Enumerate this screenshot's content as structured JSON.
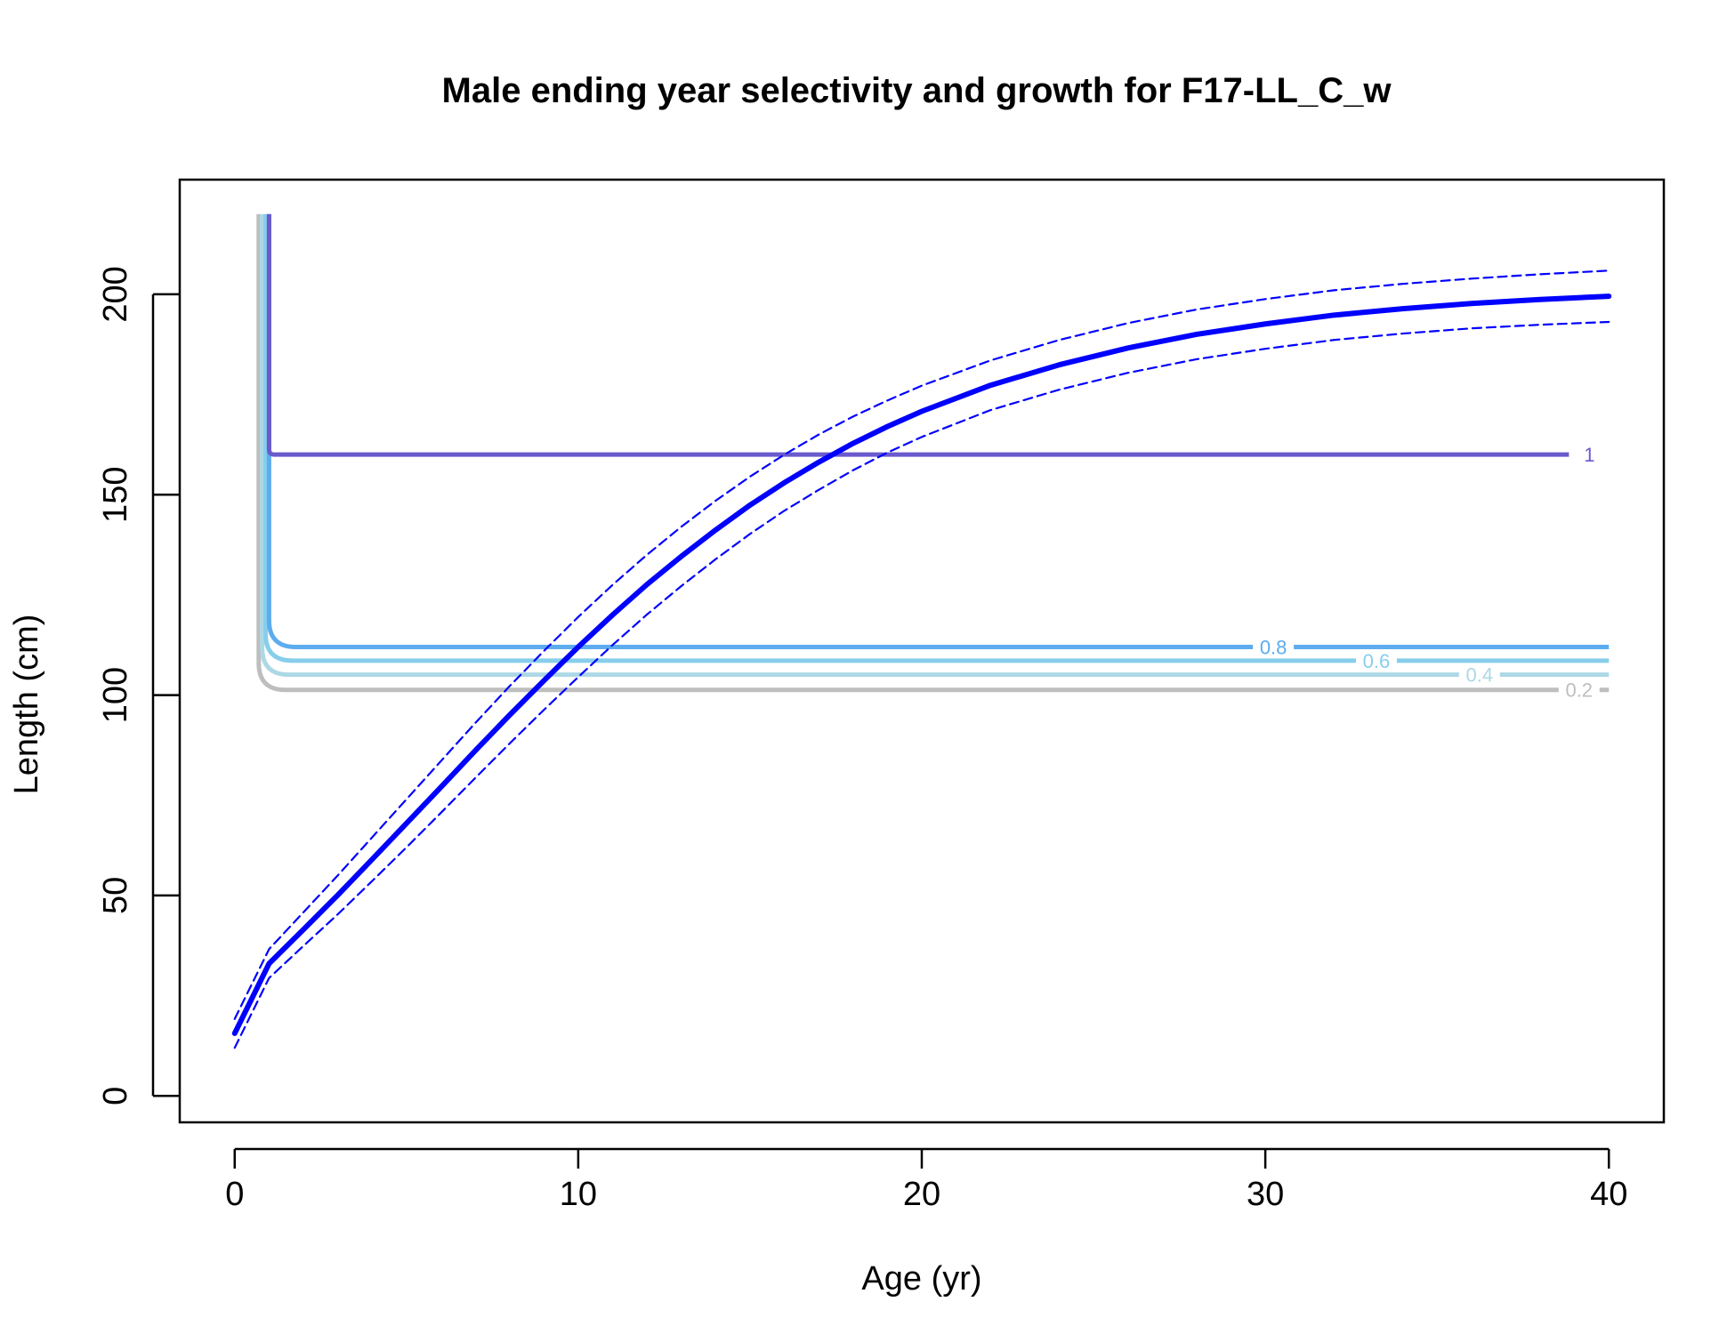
{
  "chart_data": {
    "type": "line",
    "title": "Male ending year selectivity and growth for F17-LL_C_w",
    "xlabel": "Age (yr)",
    "ylabel": "Length (cm)",
    "xlim": [
      -1.6,
      41.6
    ],
    "ylim": [
      -6.6,
      228.6
    ],
    "xticks": [
      0,
      10,
      20,
      30,
      40
    ],
    "yticks": [
      0,
      50,
      100,
      150,
      200
    ],
    "grid": false,
    "series": [
      {
        "color": "#0000ff",
        "style": "solid",
        "x": [
          0,
          1,
          2,
          3,
          4,
          5,
          6,
          7,
          8,
          9,
          10,
          11,
          12,
          13,
          14,
          15,
          16,
          17,
          18,
          19,
          20,
          22,
          24,
          26,
          28,
          30,
          32,
          34,
          36,
          38,
          40
        ],
        "y": [
          15.6,
          33,
          41.5,
          50.1,
          59,
          68,
          77,
          86.1,
          95,
          103.6,
          112,
          120,
          127.6,
          134.6,
          141.2,
          147.4,
          153,
          158.1,
          162.8,
          167,
          170.8,
          177.3,
          182.4,
          186.6,
          190,
          192.6,
          194.8,
          196.4,
          197.7,
          198.7,
          199.5
        ]
      },
      {
        "color": "#0000ff",
        "style": "dashed",
        "x": [
          0,
          1,
          2,
          3,
          4,
          5,
          6,
          7,
          8,
          9,
          10,
          11,
          12,
          13,
          14,
          15,
          16,
          17,
          18,
          19,
          20,
          22,
          24,
          26,
          28,
          30,
          32,
          34,
          36,
          38,
          40
        ],
        "y": [
          19.2,
          36.6,
          45.8,
          55,
          64.5,
          74,
          83.5,
          93,
          102.2,
          111,
          119.5,
          127.5,
          135,
          142,
          148.5,
          154.5,
          160,
          165,
          169.5,
          173.5,
          177.2,
          183.5,
          188.6,
          192.8,
          196.2,
          198.8,
          201,
          202.6,
          203.9,
          205,
          205.9
        ]
      },
      {
        "color": "#0000ff",
        "style": "dashed",
        "x": [
          0,
          1,
          2,
          3,
          4,
          5,
          6,
          7,
          8,
          9,
          10,
          11,
          12,
          13,
          14,
          15,
          16,
          17,
          18,
          19,
          20,
          22,
          24,
          26,
          28,
          30,
          32,
          34,
          36,
          38,
          40
        ],
        "y": [
          12,
          29.4,
          37.4,
          45.3,
          53.6,
          62,
          70.6,
          79.3,
          87.9,
          96.3,
          104.5,
          112.5,
          120.1,
          127.2,
          133.9,
          140.2,
          146,
          151.2,
          156.1,
          160.5,
          164.4,
          171.1,
          176.2,
          180.4,
          183.8,
          186.4,
          188.6,
          190.2,
          191.5,
          192.4,
          193.1
        ]
      }
    ],
    "contours": [
      {
        "level": "0.2",
        "color": "#bebebe",
        "age_corner": 0.7,
        "length": 101.3,
        "end_age": 38.9
      },
      {
        "level": "0.4",
        "color": "#add8e6",
        "age_corner": 0.8,
        "length": 105.1,
        "end_age": 36
      },
      {
        "level": "0.6",
        "color": "#87ceeb",
        "age_corner": 0.9,
        "length": 108.6,
        "end_age": 33
      },
      {
        "level": "0.8",
        "color": "#5cacee",
        "age_corner": 1,
        "length": 112,
        "end_age": 30
      },
      {
        "level": "1",
        "color": "#6a5acd",
        "age_corner": 1,
        "length": 160,
        "end_age": 39.2
      }
    ]
  }
}
